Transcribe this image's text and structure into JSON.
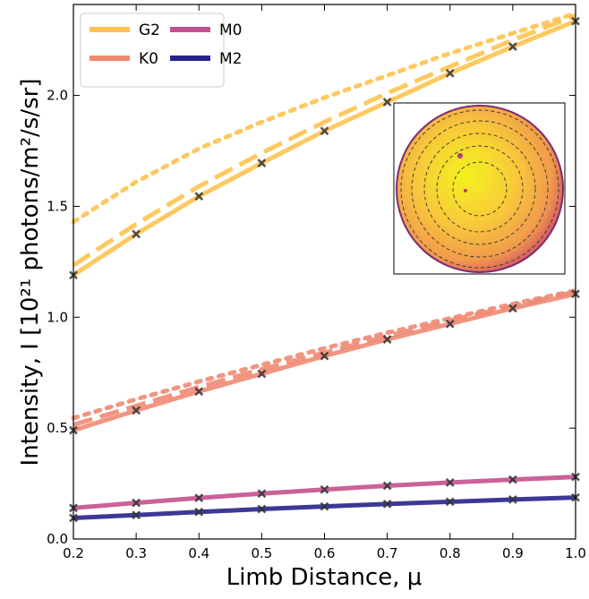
{
  "chart_data": {
    "type": "line",
    "xlabel": "Limb Distance, μ",
    "ylabel": "Intensity, I [10²¹ photons/m²/s/sr]",
    "x": [
      0.2,
      0.3,
      0.4,
      0.5,
      0.6,
      0.7,
      0.8,
      0.9,
      1.0
    ],
    "xlim": [
      0.2,
      1.0
    ],
    "xticks": [
      0.2,
      0.3,
      0.4,
      0.5,
      0.6,
      0.7,
      0.8,
      0.9,
      {
        "value": 1.0,
        "label": "1.0"
      }
    ],
    "ylim": [
      0,
      2.41
    ],
    "yticks": [
      {
        "value": 0,
        "label": "0.0"
      },
      0.5,
      {
        "value": 1.0,
        "label": "1.0"
      },
      1.5,
      {
        "value": 2.0,
        "label": "2.0"
      }
    ],
    "legend": "upper left",
    "series": [
      {
        "color": "#fdc34f",
        "dash": "dotted",
        "values": [
          1.43,
          1.61,
          1.76,
          1.88,
          1.99,
          2.09,
          2.19,
          2.28,
          2.37
        ]
      },
      {
        "color": "#fdc34f",
        "dash": "dashed",
        "values": [
          1.234,
          1.42,
          1.59,
          1.74,
          1.88,
          2.01,
          2.13,
          2.25,
          2.36
        ]
      },
      {
        "name": "G2",
        "color": "#fdc34f",
        "dash": "solid",
        "marker": "x",
        "values": [
          1.19,
          1.375,
          1.545,
          1.695,
          1.84,
          1.97,
          2.1,
          2.22,
          2.335
        ]
      },
      {
        "color": "#ef8a73",
        "dash": "dotted",
        "values": [
          0.545,
          0.63,
          0.71,
          0.785,
          0.86,
          0.93,
          0.995,
          1.06,
          1.12
        ]
      },
      {
        "color": "#ef8a73",
        "dash": "dashed",
        "values": [
          0.515,
          0.6,
          0.685,
          0.765,
          0.84,
          0.915,
          0.985,
          1.05,
          1.115
        ]
      },
      {
        "name": "K0",
        "color": "#ef8a73",
        "dash": "solid",
        "marker": "x",
        "values": [
          0.49,
          0.58,
          0.665,
          0.745,
          0.825,
          0.9,
          0.97,
          1.04,
          1.105
        ]
      },
      {
        "name": "M0",
        "color": "#c4508e",
        "dash": "solid",
        "marker": "x",
        "values": [
          0.14,
          0.163,
          0.185,
          0.205,
          0.223,
          0.24,
          0.255,
          0.268,
          0.28
        ]
      },
      {
        "name": "M2",
        "color": "#27248a",
        "dash": "solid",
        "marker": "x",
        "values": [
          0.095,
          0.108,
          0.122,
          0.135,
          0.147,
          0.158,
          0.168,
          0.178,
          0.187
        ]
      }
    ]
  }
}
